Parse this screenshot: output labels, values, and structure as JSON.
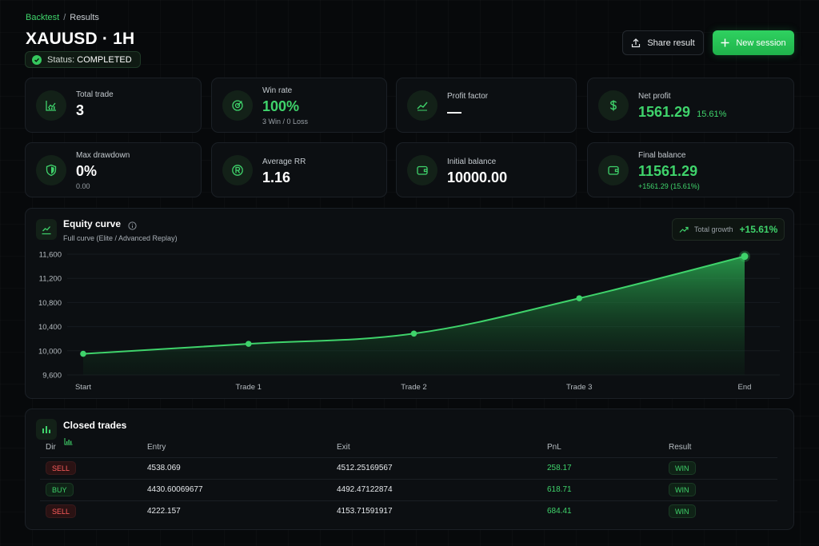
{
  "breadcrumb": {
    "link": "Backtest",
    "separator": "/",
    "current": "Results"
  },
  "title": "XAUUSD · 1H",
  "status": {
    "label": "Status:",
    "value": "COMPLETED"
  },
  "actions": {
    "share_label": "Share result",
    "new_label": "New session"
  },
  "stats": {
    "total_trade": {
      "label": "Total trade",
      "value": "3"
    },
    "win_rate": {
      "label": "Win rate",
      "value": "100%",
      "sub": "3 Win / 0 Loss"
    },
    "profit_factor": {
      "label": "Profit factor",
      "value": "—"
    },
    "net_profit": {
      "label": "Net profit",
      "value": "1561.29",
      "pct": "15.61%"
    },
    "max_drawdown": {
      "label": "Max drawdown",
      "value": "0%",
      "sub": "0.00"
    },
    "average_rr": {
      "label": "Average RR",
      "value": "1.16"
    },
    "initial_balance": {
      "label": "Initial balance",
      "value": "10000.00"
    },
    "final_balance": {
      "label": "Final balance",
      "value": "11561.29",
      "sub": "+1561.29 (15.61%)"
    }
  },
  "equity": {
    "title": "Equity curve",
    "subtitle": "Full curve (Elite / Advanced Replay)",
    "growth_label": "Total growth",
    "growth_value": "+15.61%"
  },
  "chart_data": {
    "type": "area",
    "title": "Equity curve",
    "categories": [
      "Start",
      "Trade 1",
      "Trade 2",
      "Trade 3",
      "End"
    ],
    "values": [
      9950,
      10115,
      10285,
      10870,
      11565
    ],
    "yticks": [
      "11,600",
      "11,200",
      "10,800",
      "10,400",
      "10,000",
      "9,600"
    ],
    "ylim": [
      9600,
      11600
    ],
    "grid": true,
    "line_color": "#3fd36b"
  },
  "trades": {
    "title": "Closed trades",
    "columns": [
      "Dir",
      "Entry",
      "Exit",
      "PnL",
      "Result"
    ],
    "rows": [
      {
        "dir": "SELL",
        "entry": "4538.069",
        "exit": "4512.25169567",
        "pnl": "258.17",
        "result": "WIN"
      },
      {
        "dir": "BUY",
        "entry": "4430.60069677",
        "exit": "4492.47122874",
        "pnl": "618.71",
        "result": "WIN"
      },
      {
        "dir": "SELL",
        "entry": "4222.157",
        "exit": "4153.71591917",
        "pnl": "684.41",
        "result": "WIN"
      }
    ]
  },
  "icons": {
    "total_trade": "chart-icon",
    "win_rate": "target-icon",
    "profit_factor": "trend-icon",
    "net_profit": "dollar-icon",
    "max_drawdown": "shield-icon",
    "average_rr": "r-icon",
    "initial_balance": "wallet-icon",
    "final_balance": "wallet-icon"
  }
}
